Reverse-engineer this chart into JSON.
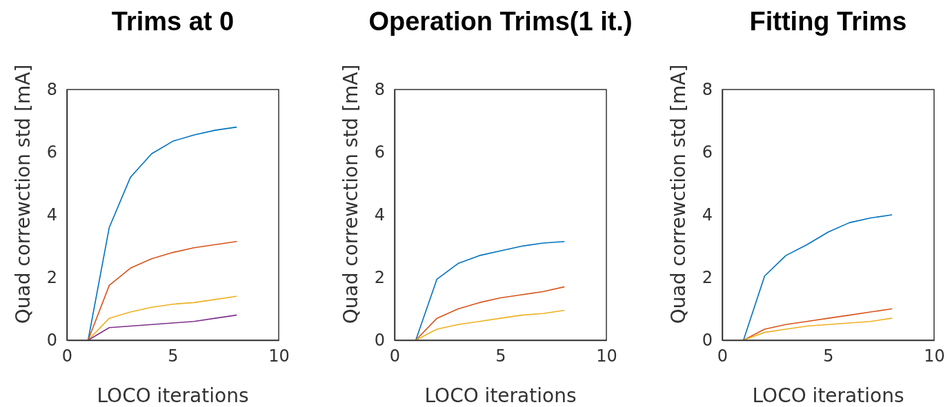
{
  "chart_data": [
    {
      "type": "line",
      "title": "Trims at 0",
      "xlabel": "LOCO iterations",
      "ylabel": "Quad correwction std [mA]",
      "x": [
        1,
        2,
        3,
        4,
        5,
        6,
        7,
        8
      ],
      "xlim": [
        0,
        10
      ],
      "xticks": [
        0,
        5,
        10
      ],
      "ylim": [
        0,
        8
      ],
      "yticks": [
        0,
        2,
        4,
        6,
        8
      ],
      "grid": false,
      "series": [
        {
          "color": "#0072bd",
          "values": [
            0,
            3.6,
            5.2,
            5.95,
            6.35,
            6.55,
            6.7,
            6.8
          ]
        },
        {
          "color": "#d95319",
          "values": [
            0,
            1.75,
            2.3,
            2.6,
            2.8,
            2.95,
            3.05,
            3.15
          ]
        },
        {
          "color": "#edb120",
          "values": [
            0,
            0.7,
            0.9,
            1.05,
            1.15,
            1.2,
            1.3,
            1.4
          ]
        },
        {
          "color": "#7e2f8e",
          "values": [
            0,
            0.4,
            0.45,
            0.5,
            0.55,
            0.6,
            0.7,
            0.8
          ]
        }
      ]
    },
    {
      "type": "line",
      "title": "Operation Trims(1 it.)",
      "xlabel": "LOCO iterations",
      "ylabel": "Quad correwction std [mA]",
      "x": [
        1,
        2,
        3,
        4,
        5,
        6,
        7,
        8
      ],
      "xlim": [
        0,
        10
      ],
      "xticks": [
        0,
        5,
        10
      ],
      "ylim": [
        0,
        8
      ],
      "yticks": [
        0,
        2,
        4,
        6,
        8
      ],
      "grid": false,
      "series": [
        {
          "color": "#0072bd",
          "values": [
            0,
            1.95,
            2.45,
            2.7,
            2.85,
            3.0,
            3.1,
            3.15
          ]
        },
        {
          "color": "#d95319",
          "values": [
            0,
            0.7,
            1.0,
            1.2,
            1.35,
            1.45,
            1.55,
            1.7
          ]
        },
        {
          "color": "#edb120",
          "values": [
            0,
            0.35,
            0.5,
            0.6,
            0.7,
            0.8,
            0.85,
            0.95
          ]
        }
      ]
    },
    {
      "type": "line",
      "title": "Fitting Trims",
      "xlabel": "LOCO iterations",
      "ylabel": "Quad correwction std [mA]",
      "x": [
        1,
        2,
        3,
        4,
        5,
        6,
        7,
        8
      ],
      "xlim": [
        0,
        10
      ],
      "xticks": [
        0,
        5,
        10
      ],
      "ylim": [
        0,
        8
      ],
      "yticks": [
        0,
        2,
        4,
        6,
        8
      ],
      "grid": false,
      "series": [
        {
          "color": "#0072bd",
          "values": [
            0,
            2.05,
            2.7,
            3.05,
            3.45,
            3.75,
            3.9,
            4.0
          ]
        },
        {
          "color": "#d95319",
          "values": [
            0,
            0.35,
            0.5,
            0.6,
            0.7,
            0.8,
            0.9,
            1.0
          ]
        },
        {
          "color": "#edb120",
          "values": [
            0,
            0.25,
            0.35,
            0.45,
            0.5,
            0.55,
            0.6,
            0.7
          ]
        }
      ]
    }
  ]
}
